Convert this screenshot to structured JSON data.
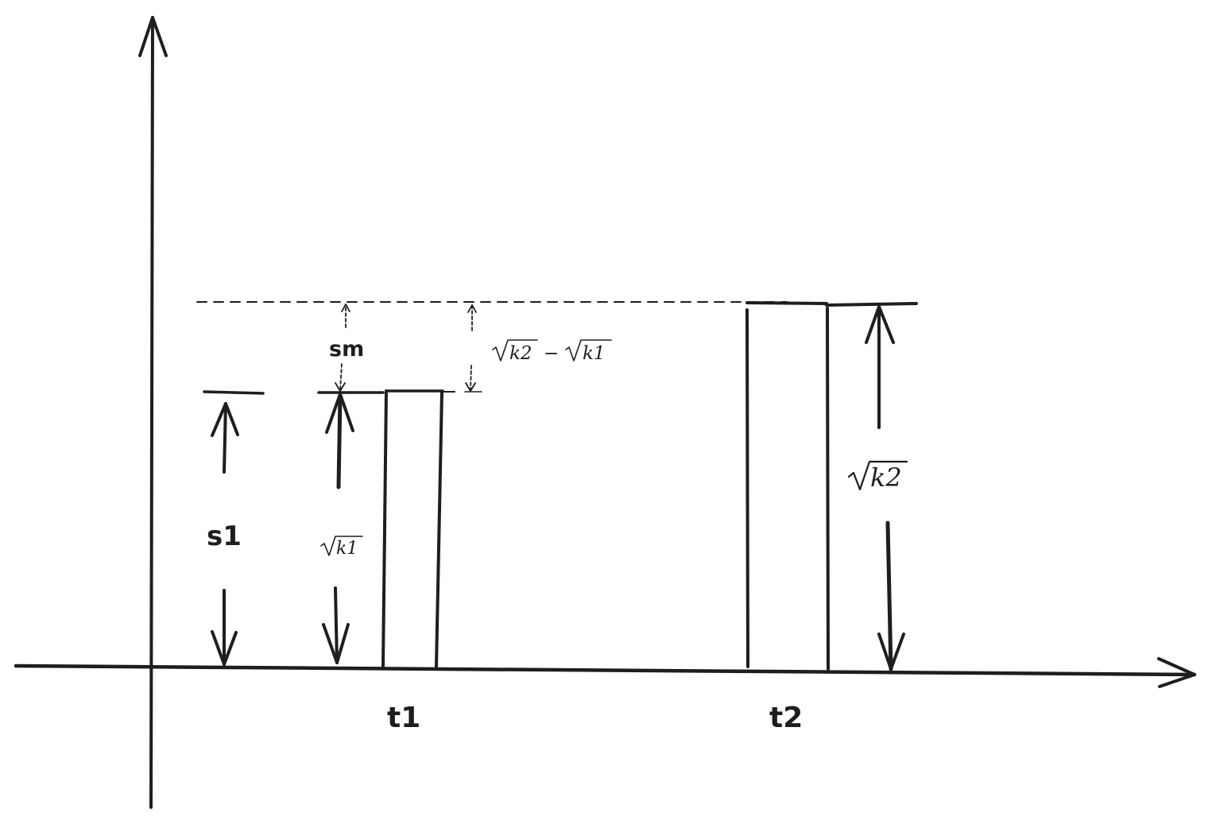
{
  "labels": {
    "s1": "s1",
    "sm": "sm",
    "t1": "t1",
    "t2": "t2",
    "sqrt_k1": "k1",
    "sqrt_k2": "k2",
    "difference_left": "k2",
    "difference_minus": "−",
    "difference_right": "k1"
  },
  "colors": {
    "ink": "#1e1e1e",
    "background": "#ffffff"
  }
}
